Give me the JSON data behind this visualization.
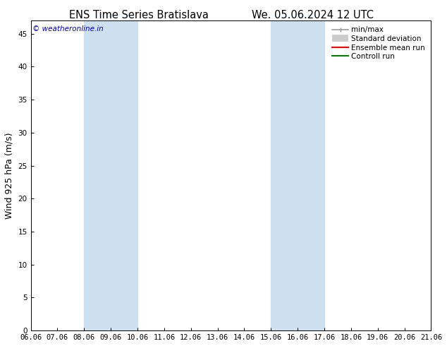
{
  "title_left": "ENS Time Series Bratislava",
  "title_right": "We. 05.06.2024 12 UTC",
  "ylabel": "Wind 925 hPa (m/s)",
  "watermark": "© weatheronline.in",
  "xtick_labels": [
    "06.06",
    "07.06",
    "08.06",
    "09.06",
    "10.06",
    "11.06",
    "12.06",
    "13.06",
    "14.06",
    "15.06",
    "16.06",
    "17.06",
    "18.06",
    "19.06",
    "20.06",
    "21.06"
  ],
  "ytick_values": [
    0,
    5,
    10,
    15,
    20,
    25,
    30,
    35,
    40,
    45
  ],
  "ylim": [
    0,
    47
  ],
  "xlim": [
    0,
    15
  ],
  "shaded_bands": [
    {
      "x_start": 2,
      "x_end": 4,
      "color": "#cce0f0"
    },
    {
      "x_start": 9,
      "x_end": 11,
      "color": "#cce0f0"
    }
  ],
  "legend_entries": [
    {
      "label": "min/max",
      "color": "#999999",
      "lw": 1.2
    },
    {
      "label": "Standard deviation",
      "color": "#cccccc",
      "lw": 6
    },
    {
      "label": "Ensemble mean run",
      "color": "#ff0000",
      "lw": 1.5
    },
    {
      "label": "Controll run",
      "color": "#008000",
      "lw": 1.5
    }
  ],
  "bg_color": "#ffffff",
  "plot_bg_color": "#ffffff",
  "spine_color": "#000000",
  "tick_color": "#000000",
  "title_fontsize": 10.5,
  "label_fontsize": 9,
  "tick_fontsize": 7.5,
  "watermark_color": "#0000bb",
  "grid_color": "#e0e0e0",
  "grid_lw": 0.4
}
